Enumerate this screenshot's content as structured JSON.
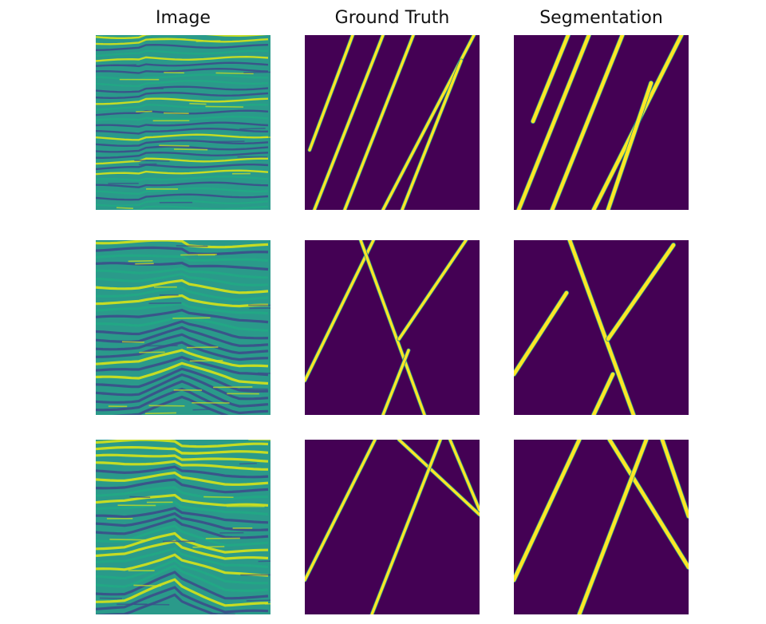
{
  "figure": {
    "columns": [
      "Image",
      "Ground Truth",
      "Segmentation"
    ],
    "rows": [
      {
        "image": "seismic-section-1",
        "ground_truth": "fault-mask-1",
        "segmentation": "predicted-fault-mask-1"
      },
      {
        "image": "seismic-section-2",
        "ground_truth": "fault-mask-2",
        "segmentation": "predicted-fault-mask-2"
      },
      {
        "image": "seismic-section-3",
        "ground_truth": "fault-mask-3",
        "segmentation": "predicted-fault-mask-3"
      }
    ]
  },
  "colors": {
    "mask_background": "#440154",
    "mask_fault": "#fde725",
    "mask_edge": "#21918c",
    "seismic_base": "#2a9a8a",
    "seismic_dark": "#3b4f8a",
    "seismic_mid": "#22a884",
    "seismic_bright": "#d2e21b"
  }
}
